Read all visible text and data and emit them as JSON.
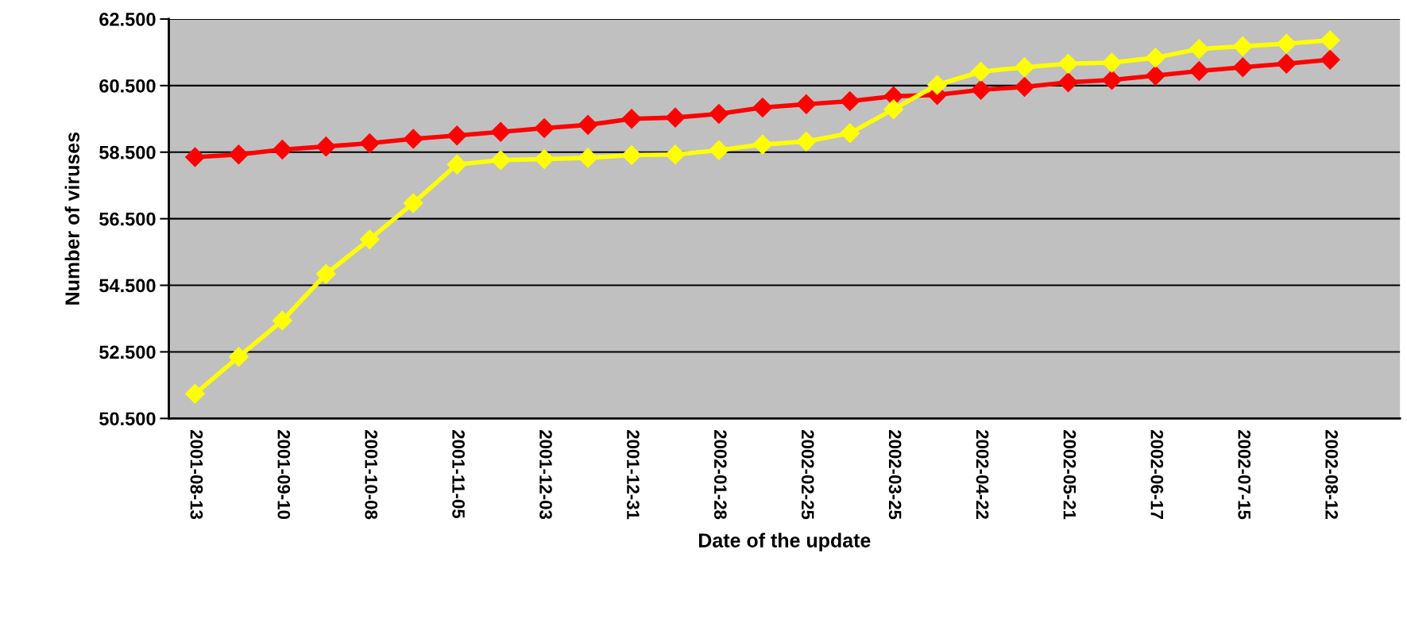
{
  "chart_data": {
    "type": "line",
    "xlabel": "Date of the update",
    "ylabel": "Number of viruses",
    "categories": [
      "2001-08-13",
      null,
      "2001-09-10",
      null,
      "2001-10-08",
      null,
      "2001-11-05",
      null,
      "2001-12-03",
      null,
      "2001-12-31",
      null,
      "2002-01-28",
      null,
      "2002-02-25",
      null,
      "2002-03-25",
      null,
      "2002-04-22",
      null,
      "2002-05-21",
      null,
      "2002-06-17",
      null,
      "2002-07-15",
      null,
      "2002-08-12"
    ],
    "series": [
      {
        "color": "#ff0000",
        "values": [
          58350,
          58430,
          58580,
          58670,
          58770,
          58900,
          59000,
          59110,
          59220,
          59320,
          59500,
          59540,
          59650,
          59840,
          59940,
          60030,
          60180,
          60220,
          60370,
          60460,
          60600,
          60670,
          60800,
          60940,
          61050,
          61160,
          61280
        ]
      },
      {
        "color": "#ffff00",
        "values": [
          51240,
          52350,
          53440,
          54840,
          55880,
          56970,
          58130,
          58260,
          58290,
          58330,
          58410,
          58430,
          58560,
          58730,
          58820,
          59070,
          59790,
          60520,
          60920,
          61050,
          61160,
          61190,
          61340,
          61600,
          61680,
          61760,
          61860
        ]
      }
    ],
    "ylim": [
      50500,
      62500
    ],
    "yticks": [
      {
        "value": 50500,
        "label": "50.500"
      },
      {
        "value": 52500,
        "label": "52.500"
      },
      {
        "value": 54500,
        "label": "54.500"
      },
      {
        "value": 56500,
        "label": "56.500"
      },
      {
        "value": 58500,
        "label": "58.500"
      },
      {
        "value": 60500,
        "label": "60.500"
      },
      {
        "value": 62500,
        "label": "62.500"
      }
    ],
    "grid": "y",
    "marker": "diamond",
    "line_style": "solid",
    "legend": false
  }
}
